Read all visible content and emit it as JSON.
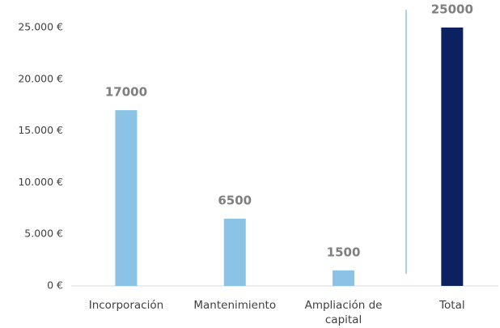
{
  "chart_data": {
    "type": "bar",
    "categories": [
      "Incorporación",
      "Mantenimiento",
      "Ampliación de capital",
      "Total"
    ],
    "values": [
      17000,
      6500,
      1500,
      25000
    ],
    "colors": [
      "#8bc3e6",
      "#8bc3e6",
      "#8bc3e6",
      "#0c2161"
    ],
    "ylim": [
      0,
      25000
    ],
    "yticks": [
      {
        "value": 0,
        "label": "0 €"
      },
      {
        "value": 5000,
        "label": "5.000 €"
      },
      {
        "value": 10000,
        "label": "10.000 €"
      },
      {
        "value": 15000,
        "label": "15.000 €"
      },
      {
        "value": 20000,
        "label": "20.000 €"
      },
      {
        "value": 25000,
        "label": "25.000 €"
      }
    ],
    "grid": false
  }
}
